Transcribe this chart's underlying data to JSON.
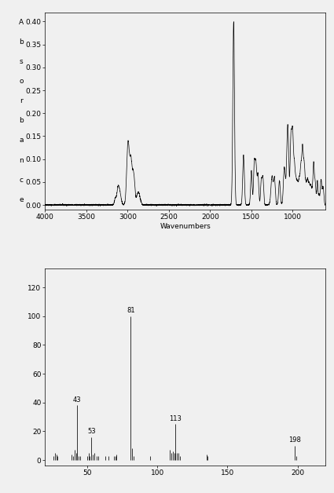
{
  "ir_xlabel": "Wavenumbers",
  "ir_ylabel_chars": [
    "A",
    "b",
    "s",
    "o",
    "r",
    "b",
    "a",
    "n",
    "c",
    "e"
  ],
  "ir_xlim": [
    4000,
    600
  ],
  "ir_ylim": [
    -0.01,
    0.42
  ],
  "ir_yticks": [
    0.0,
    0.05,
    0.1,
    0.15,
    0.2,
    0.25,
    0.3,
    0.35,
    0.4
  ],
  "ir_xticks": [
    4000,
    3500,
    3000,
    2500,
    2000,
    1500,
    1000
  ],
  "ms_xlim": [
    20,
    220
  ],
  "ms_ylim": [
    -4,
    133
  ],
  "ms_yticks": [
    0,
    20,
    40,
    60,
    80,
    100,
    120
  ],
  "ms_xticks": [
    50,
    100,
    150,
    200
  ],
  "ms_peaks": [
    {
      "mz": 26,
      "intensity": 3
    },
    {
      "mz": 27,
      "intensity": 5
    },
    {
      "mz": 28,
      "intensity": 4
    },
    {
      "mz": 29,
      "intensity": 3
    },
    {
      "mz": 39,
      "intensity": 4
    },
    {
      "mz": 40,
      "intensity": 3
    },
    {
      "mz": 41,
      "intensity": 7
    },
    {
      "mz": 42,
      "intensity": 5
    },
    {
      "mz": 43,
      "intensity": 38
    },
    {
      "mz": 44,
      "intensity": 3
    },
    {
      "mz": 45,
      "intensity": 3
    },
    {
      "mz": 50,
      "intensity": 3
    },
    {
      "mz": 51,
      "intensity": 5
    },
    {
      "mz": 52,
      "intensity": 3
    },
    {
      "mz": 53,
      "intensity": 16
    },
    {
      "mz": 54,
      "intensity": 4
    },
    {
      "mz": 55,
      "intensity": 5
    },
    {
      "mz": 57,
      "intensity": 3
    },
    {
      "mz": 58,
      "intensity": 3
    },
    {
      "mz": 63,
      "intensity": 3
    },
    {
      "mz": 65,
      "intensity": 3
    },
    {
      "mz": 69,
      "intensity": 3
    },
    {
      "mz": 70,
      "intensity": 3
    },
    {
      "mz": 71,
      "intensity": 4
    },
    {
      "mz": 81,
      "intensity": 100
    },
    {
      "mz": 82,
      "intensity": 8
    },
    {
      "mz": 83,
      "intensity": 3
    },
    {
      "mz": 95,
      "intensity": 3
    },
    {
      "mz": 109,
      "intensity": 7
    },
    {
      "mz": 110,
      "intensity": 5
    },
    {
      "mz": 111,
      "intensity": 6
    },
    {
      "mz": 112,
      "intensity": 5
    },
    {
      "mz": 113,
      "intensity": 25
    },
    {
      "mz": 114,
      "intensity": 5
    },
    {
      "mz": 115,
      "intensity": 5
    },
    {
      "mz": 116,
      "intensity": 3
    },
    {
      "mz": 135,
      "intensity": 4
    },
    {
      "mz": 136,
      "intensity": 3
    },
    {
      "mz": 198,
      "intensity": 10
    },
    {
      "mz": 199,
      "intensity": 3
    }
  ],
  "ms_labels": [
    {
      "mz": 43,
      "intensity": 38,
      "label": "43"
    },
    {
      "mz": 53,
      "intensity": 16,
      "label": "53"
    },
    {
      "mz": 81,
      "intensity": 100,
      "label": "81"
    },
    {
      "mz": 113,
      "intensity": 25,
      "label": "113"
    },
    {
      "mz": 198,
      "intensity": 10,
      "label": "198"
    }
  ],
  "line_color": "#000000",
  "bg_color": "#f0f0f0",
  "font_size": 6.5,
  "tick_font_size": 6.5,
  "label_font_size": 6.0
}
